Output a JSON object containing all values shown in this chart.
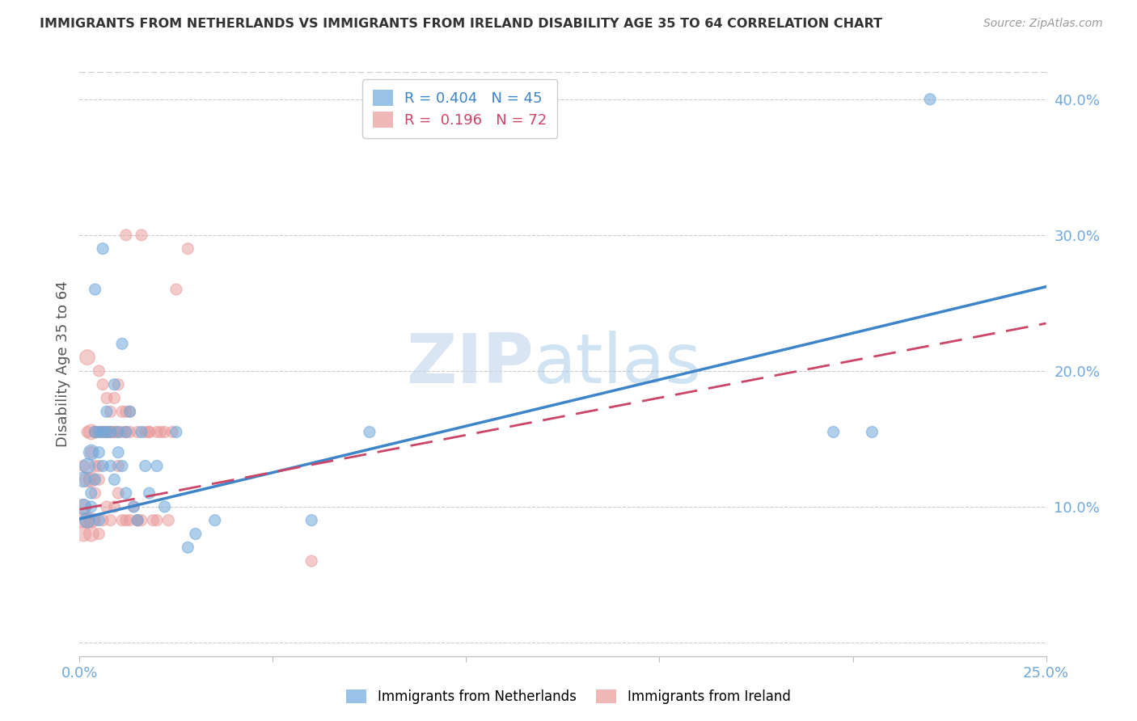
{
  "title": "IMMIGRANTS FROM NETHERLANDS VS IMMIGRANTS FROM IRELAND DISABILITY AGE 35 TO 64 CORRELATION CHART",
  "source": "Source: ZipAtlas.com",
  "ylabel": "Disability Age 35 to 64",
  "xlim": [
    0.0,
    0.25
  ],
  "ylim": [
    -0.01,
    0.42
  ],
  "netherlands_color": "#6fa8dc",
  "ireland_color": "#ea9999",
  "netherlands_line_color": "#3d85c8",
  "ireland_line_color": "#cc4466",
  "netherlands_R": 0.404,
  "netherlands_N": 45,
  "ireland_R": 0.196,
  "ireland_N": 72,
  "netherlands_x": [
    0.001,
    0.001,
    0.002,
    0.002,
    0.003,
    0.003,
    0.003,
    0.004,
    0.004,
    0.005,
    0.005,
    0.005,
    0.006,
    0.006,
    0.007,
    0.007,
    0.008,
    0.008,
    0.009,
    0.009,
    0.01,
    0.01,
    0.011,
    0.011,
    0.012,
    0.012,
    0.013,
    0.014,
    0.015,
    0.016,
    0.017,
    0.018,
    0.02,
    0.022,
    0.025,
    0.03,
    0.035,
    0.06,
    0.075,
    0.195,
    0.205,
    0.22,
    0.004,
    0.006,
    0.028
  ],
  "netherlands_y": [
    0.12,
    0.1,
    0.13,
    0.09,
    0.14,
    0.11,
    0.1,
    0.155,
    0.12,
    0.155,
    0.14,
    0.09,
    0.155,
    0.13,
    0.17,
    0.155,
    0.155,
    0.13,
    0.19,
    0.12,
    0.155,
    0.14,
    0.22,
    0.13,
    0.155,
    0.11,
    0.17,
    0.1,
    0.09,
    0.155,
    0.13,
    0.11,
    0.13,
    0.1,
    0.155,
    0.08,
    0.09,
    0.09,
    0.155,
    0.155,
    0.155,
    0.4,
    0.26,
    0.29,
    0.07
  ],
  "ireland_x": [
    0.001,
    0.001,
    0.001,
    0.002,
    0.002,
    0.002,
    0.003,
    0.003,
    0.003,
    0.003,
    0.004,
    0.004,
    0.004,
    0.004,
    0.005,
    0.005,
    0.005,
    0.005,
    0.006,
    0.006,
    0.006,
    0.007,
    0.007,
    0.007,
    0.008,
    0.008,
    0.008,
    0.009,
    0.009,
    0.009,
    0.01,
    0.01,
    0.01,
    0.011,
    0.011,
    0.012,
    0.012,
    0.012,
    0.013,
    0.013,
    0.014,
    0.015,
    0.015,
    0.016,
    0.016,
    0.017,
    0.018,
    0.019,
    0.02,
    0.02,
    0.021,
    0.022,
    0.023,
    0.024,
    0.001,
    0.002,
    0.003,
    0.004,
    0.005,
    0.006,
    0.007,
    0.008,
    0.009,
    0.01,
    0.011,
    0.012,
    0.013,
    0.015,
    0.018,
    0.025,
    0.028,
    0.06
  ],
  "ireland_y": [
    0.1,
    0.09,
    0.08,
    0.21,
    0.12,
    0.09,
    0.155,
    0.12,
    0.09,
    0.08,
    0.155,
    0.13,
    0.11,
    0.09,
    0.2,
    0.155,
    0.12,
    0.08,
    0.19,
    0.155,
    0.09,
    0.18,
    0.155,
    0.1,
    0.17,
    0.155,
    0.09,
    0.18,
    0.155,
    0.1,
    0.19,
    0.155,
    0.11,
    0.17,
    0.09,
    0.3,
    0.17,
    0.09,
    0.17,
    0.09,
    0.1,
    0.155,
    0.09,
    0.3,
    0.09,
    0.155,
    0.155,
    0.09,
    0.155,
    0.09,
    0.155,
    0.155,
    0.09,
    0.155,
    0.13,
    0.155,
    0.14,
    0.155,
    0.13,
    0.155,
    0.155,
    0.155,
    0.155,
    0.13,
    0.155,
    0.155,
    0.155,
    0.09,
    0.155,
    0.26,
    0.29,
    0.06
  ],
  "watermark_zip": "ZIP",
  "watermark_atlas": "atlas",
  "background_color": "#ffffff",
  "grid_color": "#cccccc",
  "axis_color": "#6fa8dc",
  "title_color": "#333333",
  "source_color": "#999999"
}
